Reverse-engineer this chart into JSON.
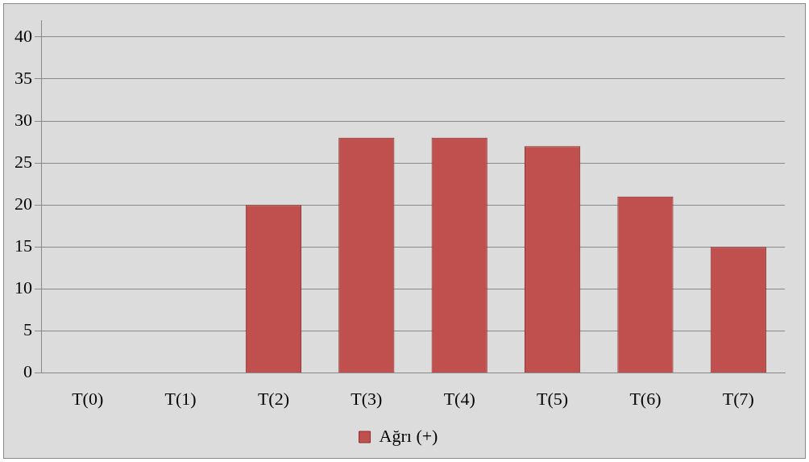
{
  "chart_data": {
    "type": "bar",
    "categories": [
      "T(0)",
      "T(1)",
      "T(2)",
      "T(3)",
      "T(4)",
      "T(5)",
      "T(6)",
      "T(7)"
    ],
    "series": [
      {
        "name": "Ağrı (+)",
        "color": "#c0504d",
        "values": [
          0,
          0,
          20,
          28,
          28,
          27,
          21,
          15
        ]
      }
    ],
    "ylim": [
      0,
      42
    ],
    "yticks": [
      0,
      5,
      10,
      15,
      20,
      25,
      30,
      35,
      40
    ],
    "grid": "y",
    "legend": "bottom"
  }
}
